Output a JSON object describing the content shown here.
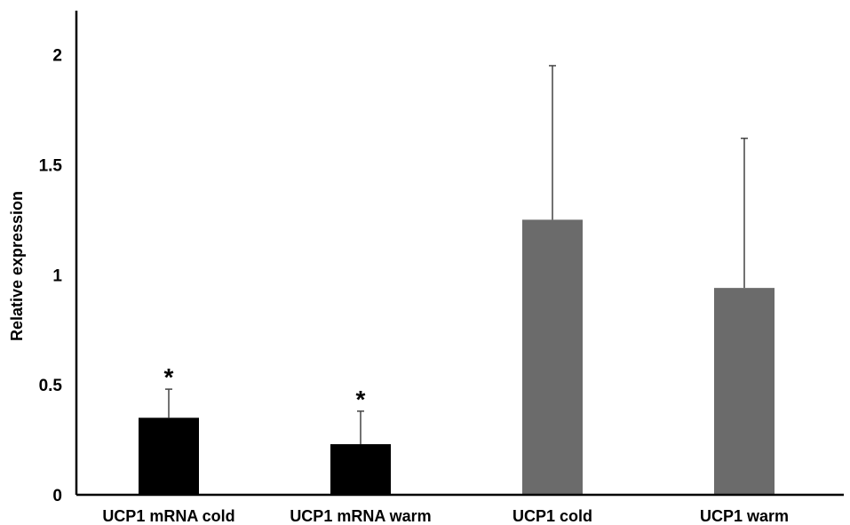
{
  "chart_data": {
    "type": "bar",
    "title": "",
    "xlabel": "",
    "ylabel": "Relative expression",
    "ylim": [
      0,
      2.2
    ],
    "yticks": [
      "0",
      "0.5",
      "1",
      "1.5",
      "2"
    ],
    "ytick_values": [
      0,
      0.5,
      1,
      1.5,
      2
    ],
    "grid": false,
    "legend": "none",
    "categories": [
      "UCP1 mRNA cold",
      "UCP1 mRNA warm",
      "UCP1 cold",
      "UCP1 warm"
    ],
    "values": [
      0.35,
      0.23,
      1.25,
      0.94
    ],
    "error_upper": [
      0.13,
      0.15,
      0.7,
      0.68
    ],
    "colors": [
      "#000000",
      "#000000",
      "#6b6b6b",
      "#6b6b6b"
    ],
    "annotations": [
      "*",
      "*",
      "",
      ""
    ]
  }
}
